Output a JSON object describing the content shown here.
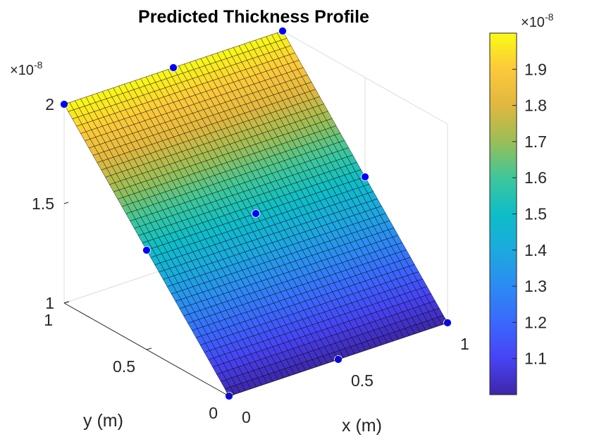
{
  "chart_data": {
    "type": "surface",
    "title": "Predicted Thickness Profile",
    "xlabel": "x (m)",
    "ylabel": "y (m)",
    "zlabel": "",
    "xlim": [
      0,
      1
    ],
    "ylim": [
      0,
      1
    ],
    "zlim": [
      1e-08,
      2e-08
    ],
    "x_ticks": [
      {
        "v": 0,
        "label": "0"
      },
      {
        "v": 0.5,
        "label": "0.5"
      },
      {
        "v": 1,
        "label": "1"
      }
    ],
    "y_ticks": [
      {
        "v": 0,
        "label": "0"
      },
      {
        "v": 0.5,
        "label": "0.5"
      },
      {
        "v": 1,
        "label": "1"
      }
    ],
    "z_ticks": [
      {
        "v": 1,
        "label": "1"
      },
      {
        "v": 1.5,
        "label": "1.5"
      },
      {
        "v": 2,
        "label": "2"
      }
    ],
    "z_multiplier": "10",
    "z_multiplier_exp": "-8",
    "colormap": "parula",
    "colorbar": {
      "clim": [
        1.0,
        2.0
      ],
      "ticks": [
        {
          "v": 1.1,
          "label": "1.1"
        },
        {
          "v": 1.2,
          "label": "1.2"
        },
        {
          "v": 1.3,
          "label": "1.3"
        },
        {
          "v": 1.4,
          "label": "1.4"
        },
        {
          "v": 1.5,
          "label": "1.5"
        },
        {
          "v": 1.6,
          "label": "1.6"
        },
        {
          "v": 1.7,
          "label": "1.7"
        },
        {
          "v": 1.8,
          "label": "1.8"
        },
        {
          "v": 1.9,
          "label": "1.9"
        }
      ],
      "multiplier": "10",
      "multiplier_exp": "-8"
    },
    "surface": {
      "grid_size": 40,
      "z_at_corners_e8": {
        "x0_y0": 1.0,
        "x1_y0": 1.0,
        "x0_y1": 2.0,
        "x1_y1": 2.0
      },
      "marker_color": "#0000ff",
      "surface_edge_color": "#000000",
      "points": [
        {
          "x": 0.0,
          "y": 0.0,
          "z_e8": 1.0
        },
        {
          "x": 0.5,
          "y": 0.0,
          "z_e8": 1.0
        },
        {
          "x": 1.0,
          "y": 0.0,
          "z_e8": 1.0
        },
        {
          "x": 0.0,
          "y": 0.5,
          "z_e8": 1.5
        },
        {
          "x": 0.5,
          "y": 0.5,
          "z_e8": 1.5
        },
        {
          "x": 1.0,
          "y": 0.5,
          "z_e8": 1.5
        },
        {
          "x": 0.0,
          "y": 1.0,
          "z_e8": 2.0
        },
        {
          "x": 0.5,
          "y": 1.0,
          "z_e8": 2.0
        },
        {
          "x": 1.0,
          "y": 1.0,
          "z_e8": 2.0
        }
      ]
    },
    "grid": true
  }
}
